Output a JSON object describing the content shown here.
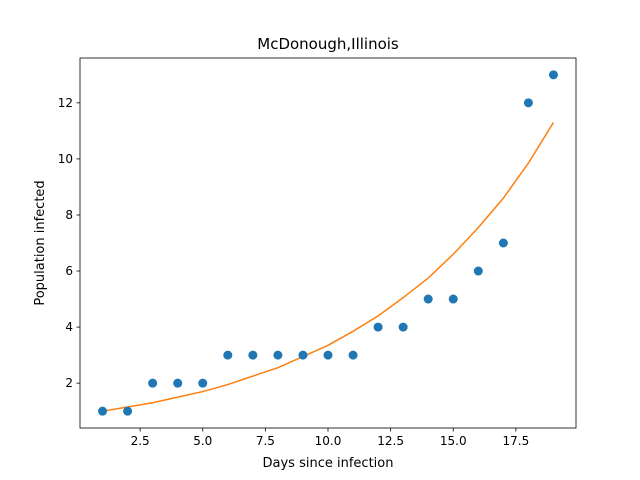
{
  "chart_data": {
    "type": "scatter",
    "title": "McDonough,Illinois",
    "xlabel": "Days since infection",
    "ylabel": "Population infected",
    "xlim": [
      0.1,
      19.9
    ],
    "ylim": [
      0.4,
      13.6
    ],
    "xticks": [
      2.5,
      5.0,
      7.5,
      10.0,
      12.5,
      15.0,
      17.5
    ],
    "xtick_labels": [
      "2.5",
      "5.0",
      "7.5",
      "10.0",
      "12.5",
      "15.0",
      "17.5"
    ],
    "yticks": [
      2,
      4,
      6,
      8,
      10,
      12
    ],
    "ytick_labels": [
      "2",
      "4",
      "6",
      "8",
      "10",
      "12"
    ],
    "grid": false,
    "series": [
      {
        "type": "scatter",
        "color": "#1f77b4",
        "x": [
          1,
          2,
          3,
          4,
          5,
          6,
          7,
          8,
          9,
          10,
          11,
          12,
          13,
          14,
          15,
          16,
          17,
          18,
          19
        ],
        "y": [
          1,
          1,
          2,
          2,
          2,
          3,
          3,
          3,
          3,
          3,
          3,
          4,
          4,
          5,
          5,
          6,
          7,
          12,
          13
        ]
      },
      {
        "type": "line",
        "color": "#ff7f0e",
        "x": [
          1,
          2,
          3,
          4,
          5,
          6,
          7,
          8,
          9,
          10,
          11,
          12,
          13,
          14,
          15,
          16,
          17,
          18,
          19
        ],
        "y": [
          1.0,
          1.15,
          1.3,
          1.5,
          1.7,
          1.95,
          2.25,
          2.55,
          2.95,
          3.35,
          3.85,
          4.4,
          5.05,
          5.75,
          6.6,
          7.55,
          8.6,
          9.85,
          11.3
        ]
      }
    ]
  }
}
